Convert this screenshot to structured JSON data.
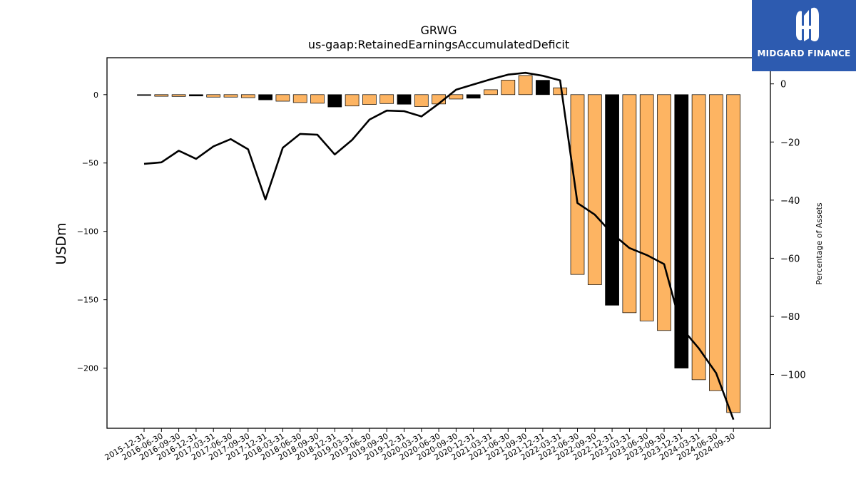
{
  "brand": {
    "name": "MIDGARD FINANCE",
    "color": "#2d5bb0"
  },
  "chart_data": {
    "type": "bar",
    "title": "GRWG",
    "subtitle": "us-gaap:RetainedEarningsAccumulatedDeficit",
    "ylabel": "USDm",
    "y2label": "Percentage of Assets",
    "ylim": [
      -244,
      27
    ],
    "y2lim": [
      -118.5,
      9
    ],
    "yticks": [
      0,
      -50,
      -100,
      -150,
      -200
    ],
    "y2ticks": [
      0,
      -20,
      -40,
      -60,
      -80,
      -100
    ],
    "categories": [
      "2015-12-31",
      "2016-06-30",
      "2016-09-30",
      "2016-12-31",
      "2017-03-31",
      "2017-06-30",
      "2017-09-30",
      "2017-12-31",
      "2018-03-31",
      "2018-06-30",
      "2018-09-30",
      "2018-12-31",
      "2019-03-31",
      "2019-06-30",
      "2019-09-30",
      "2019-12-31",
      "2020-03-31",
      "2020-06-30",
      "2020-09-30",
      "2020-12-31",
      "2021-03-31",
      "2021-06-30",
      "2021-09-30",
      "2021-12-31",
      "2022-03-31",
      "2022-06-30",
      "2022-09-30",
      "2022-12-31",
      "2023-03-31",
      "2023-06-30",
      "2023-09-30",
      "2023-12-31",
      "2024-03-31",
      "2024-06-30",
      "2024-09-30"
    ],
    "series": [
      {
        "kind": "bar",
        "axis": "left",
        "values": [
          -0.6,
          -1.2,
          -1.3,
          -1.0,
          -1.8,
          -1.8,
          -2.2,
          -3.8,
          -4.8,
          -5.8,
          -6.3,
          -9.0,
          -8.3,
          -7.2,
          -6.5,
          -7.0,
          -8.7,
          -6.8,
          -3.2,
          -2.6,
          3.6,
          10.6,
          14.0,
          10.5,
          5.0,
          -131.5,
          -139.0,
          -154.0,
          -159.5,
          -165.5,
          -172.5,
          -200.0,
          -208.5,
          -216.5,
          -232.5
        ],
        "is_fiscal_year_end": [
          true,
          false,
          false,
          true,
          false,
          false,
          false,
          true,
          false,
          false,
          false,
          true,
          false,
          false,
          false,
          true,
          false,
          false,
          false,
          true,
          false,
          false,
          false,
          true,
          false,
          false,
          false,
          true,
          false,
          false,
          false,
          true,
          false,
          false,
          false
        ],
        "colors": {
          "quarter": "#fdb462",
          "year_end": "#000000"
        }
      },
      {
        "kind": "line",
        "axis": "right",
        "color": "#000000",
        "values": [
          -27.5,
          -27.0,
          -23.0,
          -25.8,
          -21.5,
          -19.0,
          -22.5,
          -39.8,
          -22.0,
          -17.2,
          -17.5,
          -24.3,
          -19.3,
          -12.3,
          -9.2,
          -9.4,
          -11.2,
          -6.8,
          -2.0,
          -0.2,
          1.6,
          3.2,
          3.8,
          2.8,
          1.2,
          -41.0,
          -45.0,
          -51.5,
          -56.5,
          -58.9,
          -62.0,
          -83.9,
          -91.0,
          -99.5,
          -115.5
        ]
      }
    ],
    "grid": false,
    "legend": "none"
  }
}
